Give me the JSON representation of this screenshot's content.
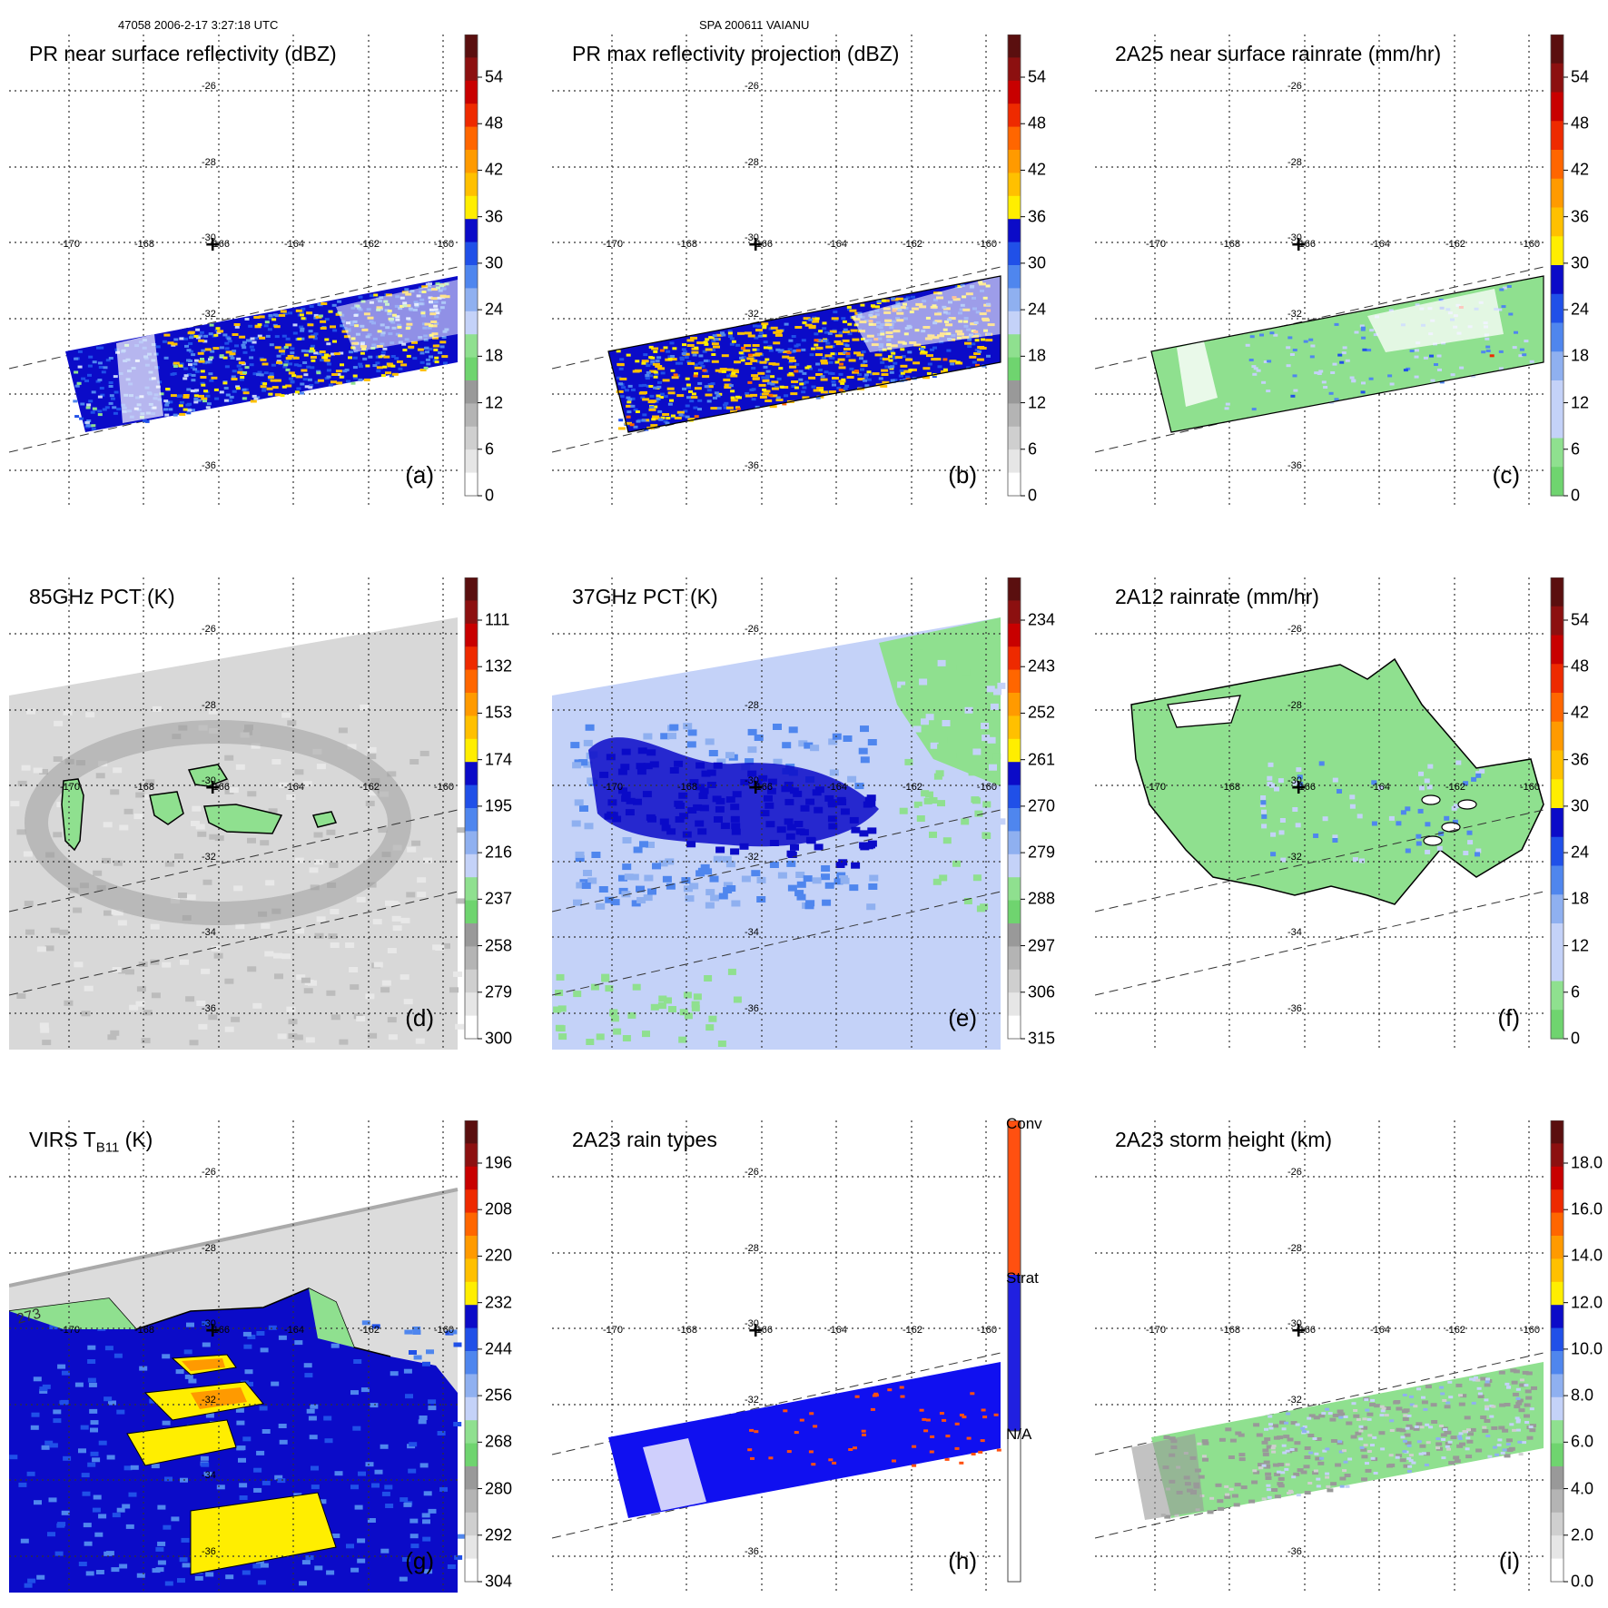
{
  "header": {
    "left": "47058 2006-2-17 3:27:18 UTC",
    "mid": "SPA 200611 VAIANU"
  },
  "grid": {
    "lat_labels": [
      "-26",
      "-28",
      "-30",
      "-32",
      "-34",
      "-36"
    ],
    "lon_labels": [
      "-170",
      "-168",
      "-166",
      "-164",
      "-162",
      "-160"
    ]
  },
  "colors": {
    "palette": [
      "#ffffff",
      "#e6e6e6",
      "#cfcfcf",
      "#b4b4b4",
      "#999999",
      "#8fe08f",
      "#6fd46f",
      "#c4d2f8",
      "#8fb0f0",
      "#4f86ee",
      "#2050e8",
      "#0b0bc8",
      "#ffee00",
      "#ffc000",
      "#ff9a00",
      "#ff6600",
      "#ee2a00",
      "#c80000",
      "#8c1010",
      "#5a0f0f"
    ],
    "ncbar_palette": [
      "#ffffff",
      "#2020e0",
      "#ff5010"
    ]
  },
  "panels": [
    {
      "id": "a",
      "title": "PR near surface reflectivity (dBZ)",
      "label": "(a)",
      "ticks": [
        "54",
        "48",
        "42",
        "36",
        "30",
        "24",
        "18",
        "12",
        "6",
        "0"
      ]
    },
    {
      "id": "b",
      "title": "PR max reflectivity projection (dBZ)",
      "label": "(b)",
      "ticks": [
        "54",
        "48",
        "42",
        "36",
        "30",
        "24",
        "18",
        "12",
        "6",
        "0"
      ]
    },
    {
      "id": "c",
      "title": "2A25 near surface rainrate (mm/hr)",
      "label": "(c)",
      "ticks": [
        "54",
        "48",
        "42",
        "36",
        "30",
        "24",
        "18",
        "12",
        "6",
        "0"
      ]
    },
    {
      "id": "d",
      "title": "85GHz PCT (K)",
      "label": "(d)",
      "ticks": [
        "111",
        "132",
        "153",
        "174",
        "195",
        "216",
        "237",
        "258",
        "279",
        "300"
      ]
    },
    {
      "id": "e",
      "title": "37GHz PCT (K)",
      "label": "(e)",
      "ticks": [
        "234",
        "243",
        "252",
        "261",
        "270",
        "279",
        "288",
        "297",
        "306",
        "315"
      ]
    },
    {
      "id": "f",
      "title": "2A12 rainrate (mm/hr)",
      "label": "(f)",
      "ticks": [
        "54",
        "48",
        "42",
        "36",
        "30",
        "24",
        "18",
        "12",
        "6",
        "0"
      ]
    },
    {
      "id": "g",
      "title_main": "VIRS T",
      "title_sub": "B11",
      "title_tail": " (K)",
      "label": "(g)",
      "contour_label": "273",
      "ticks": [
        "196",
        "208",
        "220",
        "232",
        "244",
        "256",
        "268",
        "280",
        "292",
        "304"
      ]
    },
    {
      "id": "h",
      "title": "2A23 rain types",
      "label": "(h)",
      "ticks": [
        "Conv",
        "Strat",
        "N/A"
      ]
    },
    {
      "id": "i",
      "title": "2A23 storm height (km)",
      "label": "(i)",
      "ticks": [
        "18.0",
        "16.0",
        "14.0",
        "12.0",
        "10.0",
        "8.0",
        "6.0",
        "4.0",
        "2.0",
        "0.0"
      ]
    }
  ]
}
